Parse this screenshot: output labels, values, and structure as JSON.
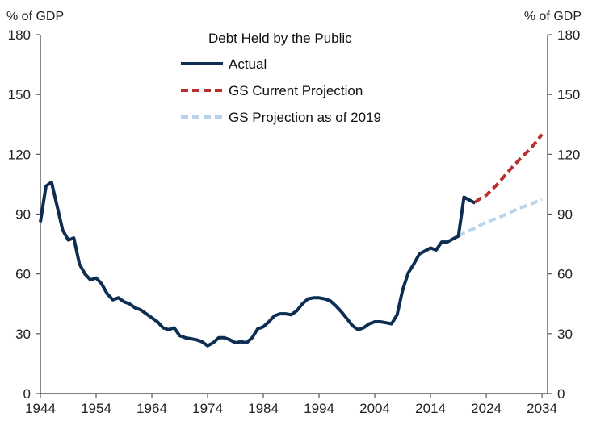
{
  "chart_data": {
    "type": "line",
    "title": "Debt Held by the Public",
    "y_unit_left": "% of GDP",
    "y_unit_right": "% of GDP",
    "xlim": [
      1944,
      2036
    ],
    "ylim": [
      0,
      180
    ],
    "x_ticks": [
      1944,
      1954,
      1964,
      1974,
      1984,
      1994,
      2004,
      2014,
      2024,
      2034
    ],
    "y_ticks": [
      0,
      30,
      60,
      90,
      120,
      150,
      180
    ],
    "legend_position": "top-center",
    "grid": false,
    "series": [
      {
        "name": "Actual",
        "color": "#0d2d52",
        "style": "solid",
        "x": [
          1944,
          1945,
          1946,
          1947,
          1948,
          1949,
          1950,
          1951,
          1952,
          1953,
          1954,
          1955,
          1956,
          1957,
          1958,
          1959,
          1960,
          1961,
          1962,
          1963,
          1964,
          1965,
          1966,
          1967,
          1968,
          1969,
          1970,
          1971,
          1972,
          1973,
          1974,
          1975,
          1976,
          1977,
          1978,
          1979,
          1980,
          1981,
          1982,
          1983,
          1984,
          1985,
          1986,
          1987,
          1988,
          1989,
          1990,
          1991,
          1992,
          1993,
          1994,
          1995,
          1996,
          1997,
          1998,
          1999,
          2000,
          2001,
          2002,
          2003,
          2004,
          2005,
          2006,
          2007,
          2008,
          2009,
          2010,
          2011,
          2012,
          2013,
          2014,
          2015,
          2016,
          2017,
          2018,
          2019,
          2020,
          2021,
          2022
        ],
        "values": [
          86,
          104,
          106,
          94,
          82,
          77,
          78,
          65,
          60,
          57,
          58,
          55,
          50,
          47,
          48,
          46,
          45,
          43,
          42,
          40,
          38,
          36,
          33,
          32,
          33,
          29,
          28,
          27.5,
          27,
          26,
          24,
          25.5,
          28,
          28,
          27,
          25.5,
          26,
          25.5,
          28,
          32.5,
          33.5,
          36,
          39,
          40,
          40,
          39.5,
          41.5,
          45,
          47.5,
          48,
          48,
          47.5,
          46.5,
          44,
          41,
          37.5,
          34,
          32,
          33,
          35,
          36,
          36,
          35.5,
          35,
          39.5,
          52,
          60.5,
          65,
          70,
          71.5,
          73,
          72,
          76,
          76,
          77.5,
          79,
          98.5,
          97,
          95.5
        ]
      },
      {
        "name": "GS Current Projection",
        "color": "#b8302e",
        "style": "dashed",
        "x": [
          2022,
          2023,
          2024,
          2026,
          2028,
          2030,
          2032,
          2034
        ],
        "values": [
          96,
          98,
          99.5,
          105,
          111.5,
          117.5,
          123,
          130
        ]
      },
      {
        "name": "GS Projection as of 2019",
        "color": "#b7d3ec",
        "style": "dashed",
        "x": [
          2019,
          2020,
          2022,
          2024,
          2026,
          2028,
          2030,
          2032,
          2034
        ],
        "values": [
          79,
          80.5,
          83,
          86,
          88,
          90.5,
          93,
          95,
          97.5
        ]
      }
    ]
  }
}
